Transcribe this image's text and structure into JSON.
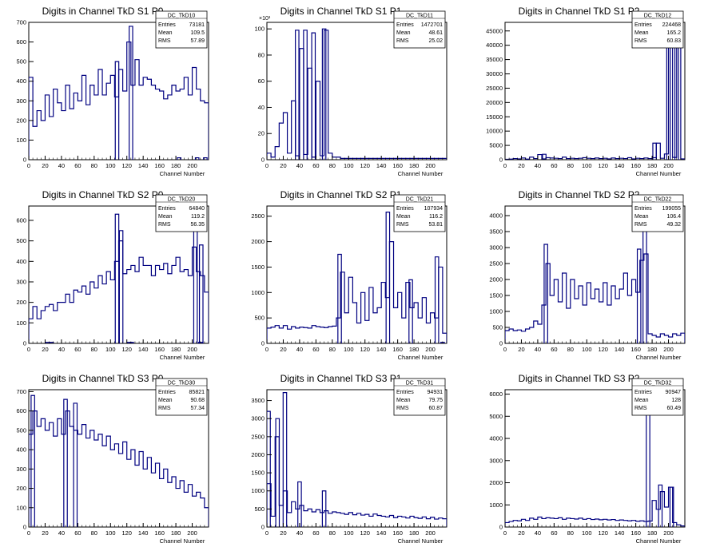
{
  "page": {
    "background": "#ffffff",
    "line_color": "#000080"
  },
  "chart_data": [
    {
      "type": "line",
      "title": "Digits in Channel TkD S1 P0",
      "xlabel": "Channel Number",
      "ylabel": "",
      "xlim": [
        0,
        220
      ],
      "ylim": [
        0,
        700
      ],
      "xticks": [
        0,
        20,
        40,
        60,
        80,
        100,
        120,
        140,
        160,
        180,
        200
      ],
      "yticks": [
        0,
        100,
        200,
        300,
        400,
        500,
        600,
        700
      ],
      "stats": {
        "name": "DC_TkD10",
        "entries": "73181",
        "mean": "109.5",
        "rms": "57.89"
      },
      "shape": "mid",
      "x": [
        0,
        5,
        10,
        15,
        20,
        25,
        30,
        35,
        40,
        45,
        50,
        55,
        60,
        65,
        70,
        75,
        80,
        85,
        90,
        95,
        100,
        105,
        110,
        115,
        120,
        125,
        130,
        135,
        140,
        145,
        150,
        155,
        160,
        165,
        170,
        175,
        180,
        185,
        190,
        195,
        200,
        205,
        210,
        215
      ],
      "values": [
        420,
        170,
        250,
        200,
        330,
        220,
        360,
        290,
        250,
        380,
        260,
        340,
        300,
        430,
        280,
        380,
        330,
        460,
        330,
        390,
        430,
        320,
        460,
        350,
        600,
        380,
        510,
        380,
        420,
        410,
        380,
        360,
        350,
        310,
        330,
        380,
        350,
        360,
        420,
        330,
        470,
        360,
        300,
        290
      ],
      "spikes": [
        [
          125,
          680
        ],
        [
          108,
          500
        ],
        [
          184,
          10
        ],
        [
          206,
          10
        ],
        [
          216,
          10
        ]
      ]
    },
    {
      "type": "line",
      "title": "Digits in Channel TkD S1 P1",
      "xlabel": "Channel Number",
      "ylabel": "",
      "xlim": [
        0,
        220
      ],
      "ylim": [
        0,
        105
      ],
      "y_multiplier": "×10³",
      "xticks": [
        0,
        20,
        40,
        60,
        80,
        100,
        120,
        140,
        160,
        180,
        200
      ],
      "yticks": [
        0,
        20,
        40,
        60,
        80,
        100
      ],
      "stats": {
        "name": "DC_TkD11",
        "entries": "1472701",
        "mean": "48.61",
        "rms": "25.02"
      },
      "shape": "peaks",
      "x": [
        0,
        5,
        10,
        15,
        20,
        25,
        30,
        35,
        40,
        45,
        50,
        55,
        60,
        65,
        70,
        75,
        80,
        85,
        90,
        95,
        100,
        105,
        110,
        115,
        120,
        125,
        130,
        135,
        140,
        145,
        150,
        155,
        160,
        165,
        170,
        175,
        180,
        185,
        190,
        195,
        200,
        205,
        210,
        215
      ],
      "values": [
        5,
        2,
        10,
        28,
        36,
        5,
        45,
        3,
        85,
        4,
        70,
        2,
        60,
        3,
        99,
        5,
        2,
        2,
        1,
        1,
        1,
        1,
        1,
        1,
        1,
        1,
        1,
        1,
        1,
        1,
        1,
        1,
        1,
        1,
        1,
        1,
        1,
        1,
        1,
        1,
        1,
        1,
        1,
        1
      ],
      "spikes": [
        [
          37,
          99
        ],
        [
          47,
          99
        ],
        [
          57,
          97
        ],
        [
          70,
          100
        ]
      ]
    },
    {
      "type": "line",
      "title": "Digits in Channel TkD S1 P2",
      "xlabel": "Channel Number",
      "ylabel": "",
      "xlim": [
        0,
        220
      ],
      "ylim": [
        0,
        48000
      ],
      "xticks": [
        0,
        20,
        40,
        60,
        80,
        100,
        120,
        140,
        160,
        180,
        200
      ],
      "yticks": [
        0,
        5000,
        10000,
        15000,
        20000,
        25000,
        30000,
        35000,
        40000,
        45000
      ],
      "stats": {
        "name": "DC_TkD12",
        "entries": "224468",
        "mean": "165.2",
        "rms": "60.83"
      },
      "shape": "mid",
      "x": [
        0,
        5,
        10,
        15,
        20,
        25,
        30,
        35,
        40,
        45,
        50,
        55,
        60,
        65,
        70,
        75,
        80,
        85,
        90,
        95,
        100,
        105,
        110,
        115,
        120,
        125,
        130,
        135,
        140,
        145,
        150,
        155,
        160,
        165,
        170,
        175,
        180,
        185,
        190,
        195,
        200,
        205,
        210,
        215
      ],
      "values": [
        150,
        200,
        400,
        300,
        600,
        200,
        900,
        400,
        1800,
        300,
        700,
        600,
        500,
        400,
        900,
        400,
        500,
        400,
        500,
        700,
        500,
        400,
        600,
        400,
        500,
        300,
        600,
        400,
        500,
        400,
        700,
        300,
        500,
        400,
        600,
        400,
        700,
        5800,
        500,
        2000,
        45000,
        800,
        46000,
        300
      ],
      "spikes": [
        [
          48,
          1900
        ],
        [
          183,
          5800
        ],
        [
          200,
          45000
        ],
        [
          210,
          46000
        ]
      ]
    },
    {
      "type": "line",
      "title": "Digits in Channel TkD S2 P0",
      "xlabel": "Channel Number",
      "ylabel": "",
      "xlim": [
        0,
        220
      ],
      "ylim": [
        0,
        670
      ],
      "xticks": [
        0,
        20,
        40,
        60,
        80,
        100,
        120,
        140,
        160,
        180,
        200
      ],
      "yticks": [
        0,
        100,
        200,
        300,
        400,
        500,
        600
      ],
      "stats": {
        "name": "DC_TkD20",
        "entries": "64840",
        "mean": "119.2",
        "rms": "56.35"
      },
      "shape": "mid",
      "x": [
        0,
        5,
        10,
        15,
        20,
        25,
        30,
        35,
        40,
        45,
        50,
        55,
        60,
        65,
        70,
        75,
        80,
        85,
        90,
        95,
        100,
        105,
        110,
        115,
        120,
        125,
        130,
        135,
        140,
        145,
        150,
        155,
        160,
        165,
        170,
        175,
        180,
        185,
        190,
        195,
        200,
        205,
        210,
        215
      ],
      "values": [
        120,
        180,
        120,
        160,
        180,
        190,
        160,
        200,
        200,
        240,
        200,
        260,
        250,
        280,
        240,
        300,
        270,
        330,
        290,
        350,
        310,
        400,
        500,
        340,
        360,
        380,
        350,
        420,
        380,
        380,
        330,
        380,
        360,
        390,
        340,
        380,
        420,
        350,
        360,
        330,
        470,
        350,
        330,
        250
      ],
      "spikes": [
        [
          108,
          630
        ],
        [
          113,
          550
        ],
        [
          23,
          5
        ],
        [
          28,
          5
        ],
        [
          123,
          5
        ],
        [
          126,
          5
        ],
        [
          210,
          5
        ],
        [
          204,
          560
        ],
        [
          211,
          480
        ]
      ]
    },
    {
      "type": "line",
      "title": "Digits in Channel TkD S2 P1",
      "xlabel": "Channel Number",
      "ylabel": "",
      "xlim": [
        0,
        220
      ],
      "ylim": [
        0,
        2700
      ],
      "xticks": [
        0,
        20,
        40,
        60,
        80,
        100,
        120,
        140,
        160,
        180,
        200
      ],
      "yticks": [
        0,
        500,
        1000,
        1500,
        2000,
        2500
      ],
      "stats": {
        "name": "DC_TkD21",
        "entries": "107934",
        "mean": "116.2",
        "rms": "53.81"
      },
      "shape": "mid",
      "x": [
        0,
        5,
        10,
        15,
        20,
        25,
        30,
        35,
        40,
        45,
        50,
        55,
        60,
        65,
        70,
        75,
        80,
        85,
        90,
        95,
        100,
        105,
        110,
        115,
        120,
        125,
        130,
        135,
        140,
        145,
        150,
        155,
        160,
        165,
        170,
        175,
        180,
        185,
        190,
        195,
        200,
        205,
        210,
        215
      ],
      "values": [
        300,
        320,
        350,
        300,
        350,
        280,
        330,
        300,
        320,
        310,
        300,
        350,
        330,
        320,
        310,
        330,
        340,
        500,
        1400,
        600,
        1300,
        800,
        400,
        1000,
        450,
        1100,
        600,
        700,
        1200,
        900,
        2000,
        700,
        1000,
        500,
        1200,
        700,
        800,
        500,
        900,
        400,
        600,
        500,
        1500,
        200
      ],
      "spikes": [
        [
          89,
          1750
        ],
        [
          148,
          2580
        ],
        [
          176,
          1250
        ],
        [
          208,
          1700
        ],
        [
          215,
          20
        ]
      ]
    },
    {
      "type": "line",
      "title": "Digits in Channel TkD S2 P2",
      "xlabel": "Channel Number",
      "ylabel": "",
      "xlim": [
        0,
        220
      ],
      "ylim": [
        0,
        4300
      ],
      "xticks": [
        0,
        20,
        40,
        60,
        80,
        100,
        120,
        140,
        160,
        180,
        200
      ],
      "yticks": [
        0,
        500,
        1000,
        1500,
        2000,
        2500,
        3000,
        3500,
        4000
      ],
      "stats": {
        "name": "DC_TkD22",
        "entries": "199055",
        "mean": "106.4",
        "rms": "49.32"
      },
      "shape": "mid",
      "x": [
        0,
        5,
        10,
        15,
        20,
        25,
        30,
        35,
        40,
        45,
        50,
        55,
        60,
        65,
        70,
        75,
        80,
        85,
        90,
        95,
        100,
        105,
        110,
        115,
        120,
        125,
        130,
        135,
        140,
        145,
        150,
        155,
        160,
        165,
        170,
        175,
        180,
        185,
        190,
        195,
        200,
        205,
        210,
        215
      ],
      "values": [
        400,
        450,
        400,
        420,
        380,
        450,
        500,
        700,
        600,
        1200,
        2500,
        1500,
        2000,
        1300,
        2200,
        1100,
        2000,
        1400,
        1800,
        1200,
        1900,
        1400,
        1700,
        1300,
        1900,
        1200,
        1800,
        1400,
        1700,
        2200,
        1500,
        2000,
        1600,
        2600,
        2800,
        300,
        250,
        200,
        300,
        250,
        200,
        300,
        250,
        320
      ],
      "spikes": [
        [
          50,
          3100
        ],
        [
          171,
          4100
        ],
        [
          164,
          2950
        ]
      ]
    },
    {
      "type": "line",
      "title": "Digits in Channel TkD S3 P0",
      "xlabel": "Channel Number",
      "ylabel": "",
      "xlim": [
        0,
        220
      ],
      "ylim": [
        0,
        710
      ],
      "xticks": [
        0,
        20,
        40,
        60,
        80,
        100,
        120,
        140,
        160,
        180,
        200
      ],
      "yticks": [
        0,
        100,
        200,
        300,
        400,
        500,
        600,
        700
      ],
      "stats": {
        "name": "DC_TkD30",
        "entries": "85821",
        "mean": "90.68",
        "rms": "57.34"
      },
      "shape": "mid",
      "x": [
        0,
        5,
        10,
        15,
        20,
        25,
        30,
        35,
        40,
        45,
        50,
        55,
        60,
        65,
        70,
        75,
        80,
        85,
        90,
        95,
        100,
        105,
        110,
        115,
        120,
        125,
        130,
        135,
        140,
        145,
        150,
        155,
        160,
        165,
        170,
        175,
        180,
        185,
        190,
        195,
        200,
        205,
        210,
        215
      ],
      "values": [
        480,
        600,
        520,
        560,
        500,
        540,
        470,
        560,
        480,
        600,
        520,
        500,
        480,
        530,
        460,
        500,
        450,
        480,
        420,
        470,
        400,
        430,
        380,
        440,
        350,
        400,
        320,
        390,
        300,
        360,
        280,
        330,
        250,
        300,
        230,
        260,
        200,
        240,
        180,
        220,
        160,
        180,
        150,
        100
      ],
      "spikes": [
        [
          5,
          680
        ],
        [
          45,
          660
        ],
        [
          57,
          640
        ]
      ]
    },
    {
      "type": "line",
      "title": "Digits in Channel TkD S3 P1",
      "xlabel": "Channel Number",
      "ylabel": "",
      "xlim": [
        0,
        220
      ],
      "ylim": [
        0,
        3800
      ],
      "xticks": [
        0,
        20,
        40,
        60,
        80,
        100,
        120,
        140,
        160,
        180,
        200
      ],
      "yticks": [
        0,
        500,
        1000,
        1500,
        2000,
        2500,
        3000,
        3500
      ],
      "stats": {
        "name": "DC_TkD31",
        "entries": "94931",
        "mean": "79.75",
        "rms": "60.87"
      },
      "shape": "mid",
      "x": [
        0,
        5,
        10,
        15,
        20,
        25,
        30,
        35,
        40,
        45,
        50,
        55,
        60,
        65,
        70,
        75,
        80,
        85,
        90,
        95,
        100,
        105,
        110,
        115,
        120,
        125,
        130,
        135,
        140,
        145,
        150,
        155,
        160,
        165,
        170,
        175,
        180,
        185,
        190,
        195,
        200,
        205,
        210,
        215
      ],
      "values": [
        1200,
        300,
        2500,
        600,
        1000,
        400,
        700,
        500,
        600,
        450,
        500,
        420,
        480,
        400,
        450,
        380,
        420,
        400,
        380,
        350,
        400,
        340,
        380,
        330,
        350,
        300,
        360,
        320,
        300,
        280,
        320,
        260,
        300,
        280,
        250,
        300,
        260,
        240,
        280,
        230,
        270,
        220,
        250,
        230
      ],
      "spikes": [
        [
          2,
          3200
        ],
        [
          13,
          3000
        ],
        [
          22,
          3720
        ],
        [
          40,
          1250
        ],
        [
          70,
          1000
        ]
      ]
    },
    {
      "type": "line",
      "title": "Digits in Channel TkD S3 P2",
      "xlabel": "Channel Number",
      "ylabel": "",
      "xlim": [
        0,
        220
      ],
      "ylim": [
        0,
        6200
      ],
      "xticks": [
        0,
        20,
        40,
        60,
        80,
        100,
        120,
        140,
        160,
        180,
        200
      ],
      "yticks": [
        0,
        1000,
        2000,
        3000,
        4000,
        5000,
        6000
      ],
      "stats": {
        "name": "DC_TkD32",
        "entries": "90947",
        "mean": "128",
        "rms": "60.49"
      },
      "shape": "mid",
      "x": [
        0,
        5,
        10,
        15,
        20,
        25,
        30,
        35,
        40,
        45,
        50,
        55,
        60,
        65,
        70,
        75,
        80,
        85,
        90,
        95,
        100,
        105,
        110,
        115,
        120,
        125,
        130,
        135,
        140,
        145,
        150,
        155,
        160,
        165,
        170,
        175,
        180,
        185,
        190,
        195,
        200,
        205,
        210,
        215
      ],
      "values": [
        200,
        250,
        300,
        280,
        350,
        300,
        400,
        350,
        450,
        380,
        420,
        400,
        380,
        420,
        350,
        400,
        380,
        360,
        400,
        350,
        380,
        340,
        360,
        330,
        350,
        320,
        340,
        300,
        320,
        300,
        280,
        300,
        260,
        280,
        250,
        270,
        1200,
        800,
        1600,
        900,
        1800,
        200,
        100,
        50
      ],
      "spikes": [
        [
          175,
          5900
        ],
        [
          190,
          1900
        ],
        [
          204,
          1800
        ]
      ]
    }
  ]
}
